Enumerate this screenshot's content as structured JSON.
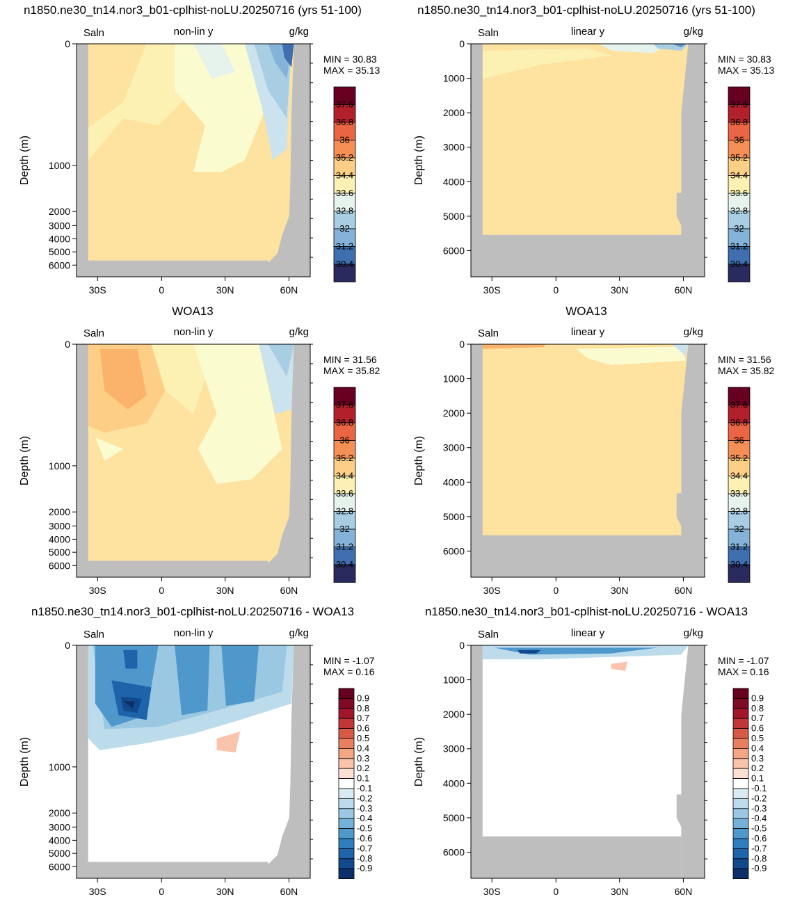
{
  "row_titles": [
    "n1850.ne30_tn14.nor3_b01-cplhist-noLU.20250716 (yrs 51-100)",
    "n1850.ne30_tn14.nor3_b01-cplhist-noLU.20250716 (yrs 51-100)",
    "WOA13",
    "WOA13",
    "n1850.ne30_tn14.nor3_b01-cplhist-noLU.20250716 - WOA13",
    "n1850.ne30_tn14.nor3_b01-cplhist-noLU.20250716 - WOA13"
  ],
  "colors": {
    "land": "#bebebe",
    "salinity_levels": [
      "#2a2a5e",
      "#2f4b8c",
      "#3f6fae",
      "#5e92c5",
      "#85b2d8",
      "#a9cde3",
      "#cbe3ee",
      "#e6f3ec",
      "#fbfbd0",
      "#fdf0b3",
      "#fde2a0",
      "#fdcf86",
      "#fbb26b",
      "#f68f55",
      "#ea6543",
      "#d33d34",
      "#b1202b",
      "#8b0c24",
      "#680022"
    ],
    "diff_levels": [
      "#0b2f6b",
      "#11498c",
      "#1e64ab",
      "#2f7fbf",
      "#4f98cc",
      "#74b0d8",
      "#9ac8e2",
      "#bcdcec",
      "#d9eaf3",
      "#ffffff",
      "#fde0d2",
      "#f9c3ac",
      "#f4a584",
      "#e8805f",
      "#d65a46",
      "#c13636",
      "#a2162c",
      "#7f0a23",
      "#67001f"
    ]
  },
  "chart_data": [
    {
      "type": "heatmap",
      "panel": "model-nonlin",
      "left_label": "Saln",
      "center_label": "non-lin y",
      "right_label": "g/kg",
      "ylabel": "Depth (m)",
      "x_ticks": [
        "30S",
        "0",
        "30N",
        "60N"
      ],
      "y_ticks": [
        "0",
        "1000",
        "2000",
        "3000",
        "4000",
        "5000",
        "6000"
      ],
      "y_scale": "non-linear",
      "stats": [
        "MIN =  30.83",
        "MAX =  35.13"
      ],
      "colorbar_labels": [
        "37.6",
        "36.8",
        "36",
        "35.2",
        "34.4",
        "33.6",
        "32.8",
        "32",
        "31.2",
        "30.4"
      ],
      "dominant_value": 34.9
    },
    {
      "type": "heatmap",
      "panel": "model-linear",
      "left_label": "Saln",
      "center_label": "linear y",
      "right_label": "g/kg",
      "ylabel": "Depth (m)",
      "x_ticks": [
        "30S",
        "0",
        "30N",
        "60N"
      ],
      "y_ticks": [
        "0",
        "1000",
        "2000",
        "3000",
        "4000",
        "5000",
        "6000"
      ],
      "y_scale": "linear",
      "stats": [
        "MIN =  30.83",
        "MAX =  35.13"
      ],
      "colorbar_labels": [
        "37.6",
        "36.8",
        "36",
        "35.2",
        "34.4",
        "33.6",
        "32.8",
        "32",
        "31.2",
        "30.4"
      ],
      "dominant_value": 34.9
    },
    {
      "type": "heatmap",
      "panel": "woa-nonlin",
      "left_label": "Saln",
      "center_label": "non-lin y",
      "right_label": "g/kg",
      "ylabel": "Depth (m)",
      "x_ticks": [
        "30S",
        "0",
        "30N",
        "60N"
      ],
      "y_ticks": [
        "0",
        "1000",
        "2000",
        "3000",
        "4000",
        "5000",
        "6000"
      ],
      "y_scale": "non-linear",
      "stats": [
        "MIN =  31.56",
        "MAX =  35.82"
      ],
      "colorbar_labels": [
        "37.6",
        "36.8",
        "36",
        "35.2",
        "34.4",
        "33.6",
        "32.8",
        "32",
        "31.2",
        "30.4"
      ],
      "dominant_value": 34.9
    },
    {
      "type": "heatmap",
      "panel": "woa-linear",
      "left_label": "Saln",
      "center_label": "linear y",
      "right_label": "g/kg",
      "ylabel": "Depth (m)",
      "x_ticks": [
        "30S",
        "0",
        "30N",
        "60N"
      ],
      "y_ticks": [
        "0",
        "1000",
        "2000",
        "3000",
        "4000",
        "5000",
        "6000"
      ],
      "y_scale": "linear",
      "stats": [
        "MIN =  31.56",
        "MAX =  35.82"
      ],
      "colorbar_labels": [
        "37.6",
        "36.8",
        "36",
        "35.2",
        "34.4",
        "33.6",
        "32.8",
        "32",
        "31.2",
        "30.4"
      ],
      "dominant_value": 34.9
    },
    {
      "type": "heatmap",
      "panel": "diff-nonlin",
      "left_label": "Saln",
      "center_label": "non-lin y",
      "right_label": "g/kg",
      "ylabel": "Depth (m)",
      "x_ticks": [
        "30S",
        "0",
        "30N",
        "60N"
      ],
      "y_ticks": [
        "0",
        "1000",
        "2000",
        "3000",
        "4000",
        "5000",
        "6000"
      ],
      "y_scale": "non-linear",
      "stats": [
        "MIN =  -1.07",
        "MAX =   0.16"
      ],
      "colorbar_labels": [
        "0.9",
        "0.8",
        "0.7",
        "0.6",
        "0.5",
        "0.4",
        "0.3",
        "0.2",
        "0.1",
        "-0.1",
        "-0.2",
        "-0.3",
        "-0.4",
        "-0.5",
        "-0.6",
        "-0.7",
        "-0.8",
        "-0.9"
      ],
      "dominant_value": 0
    },
    {
      "type": "heatmap",
      "panel": "diff-linear",
      "left_label": "Saln",
      "center_label": "linear y",
      "right_label": "g/kg",
      "ylabel": "Depth (m)",
      "x_ticks": [
        "30S",
        "0",
        "30N",
        "60N"
      ],
      "y_ticks": [
        "0",
        "1000",
        "2000",
        "3000",
        "4000",
        "5000",
        "6000"
      ],
      "y_scale": "linear",
      "stats": [
        "MIN =  -1.07",
        "MAX =   0.16"
      ],
      "colorbar_labels": [
        "0.9",
        "0.8",
        "0.7",
        "0.6",
        "0.5",
        "0.4",
        "0.3",
        "0.2",
        "0.1",
        "-0.1",
        "-0.2",
        "-0.3",
        "-0.4",
        "-0.5",
        "-0.6",
        "-0.7",
        "-0.8",
        "-0.9"
      ],
      "dominant_value": 0
    }
  ]
}
